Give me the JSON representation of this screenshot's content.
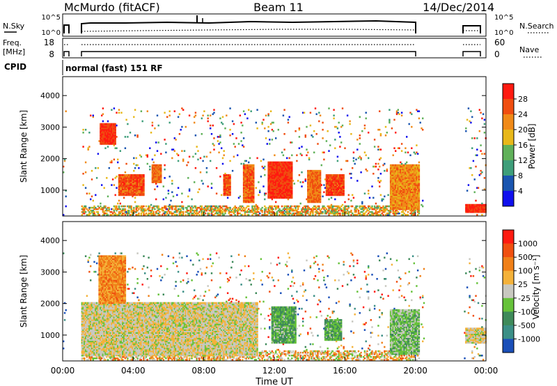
{
  "header": {
    "station": "McMurdo (fitACF)",
    "beam": "Beam 11",
    "date": "14/Dec/2014"
  },
  "top_panels": {
    "nsky_label": "N.Sky",
    "nsky_ticks": [
      "10^5",
      "10^0"
    ],
    "nsearch_label": "N.Search",
    "nsearch_ticks": [
      "10^5",
      "10^0"
    ],
    "freq_label_line1": "Freq.",
    "freq_label_line2": "[MHz]",
    "freq_ticks": [
      "18",
      "8"
    ],
    "nave_label": "Nave",
    "nave_ticks": [
      "60",
      "0"
    ],
    "cpid_label": "CPID",
    "cpid_value": "normal (fast) 151 RF"
  },
  "power_panel": {
    "ylabel": "Slant Range [km]",
    "yticks": [
      "4000",
      "3000",
      "2000",
      "1000"
    ],
    "colorbar_label": "Power [dB]",
    "colorbar_ticks": [
      "28",
      "24",
      "20",
      "16",
      "12",
      "8",
      "4"
    ],
    "colors": [
      "#1010ee",
      "#1a55b0",
      "#3e9e7a",
      "#60b15a",
      "#e8b81a",
      "#f08a18",
      "#f04e10",
      "#ff1a10"
    ]
  },
  "velocity_panel": {
    "ylabel": "Slant Range [km]",
    "yticks": [
      "4000",
      "3000",
      "2000",
      "1000"
    ],
    "colorbar_label": "Velocity [m s⁻¹]",
    "colorbar_ticks": [
      "1000",
      "500",
      "100",
      "25",
      "-25",
      "-100",
      "-500",
      "-1000"
    ],
    "colors": [
      "#1a4fb8",
      "#3b8f86",
      "#3e8a5a",
      "#66c23a",
      "#c8c8c0",
      "#f4b23a",
      "#f08018",
      "#f05010",
      "#ff1a10"
    ]
  },
  "x_axis": {
    "ticks": [
      "00:00",
      "04:00",
      "08:00",
      "12:00",
      "16:00",
      "20:00",
      "00:00"
    ],
    "label": "Time UT"
  },
  "chart_data": [
    {
      "type": "heatmap",
      "title": "Power",
      "xlabel": "Time UT",
      "ylabel": "Slant Range [km]",
      "xlim": [
        0,
        24
      ],
      "ylim": [
        180,
        4600
      ],
      "colorbar_label": "Power [dB]",
      "colorbar_range": [
        0,
        32
      ],
      "data_gaps_hours": [
        [
          0.2,
          1.0
        ],
        [
          20.5,
          22.7
        ]
      ],
      "regions": [
        {
          "t0": 2.1,
          "t1": 3.0,
          "r0": 2450,
          "r1": 3100,
          "value": 28
        },
        {
          "t0": 3.1,
          "t1": 4.6,
          "r0": 800,
          "r1": 1500,
          "value": 26
        },
        {
          "t0": 5.0,
          "t1": 5.6,
          "r0": 1200,
          "r1": 1800,
          "value": 24
        },
        {
          "t0": 9.1,
          "t1": 9.5,
          "r0": 800,
          "r1": 1500,
          "value": 26
        },
        {
          "t0": 10.2,
          "t1": 10.8,
          "r0": 600,
          "r1": 1800,
          "value": 25
        },
        {
          "t0": 11.6,
          "t1": 13.0,
          "r0": 700,
          "r1": 1900,
          "value": 28
        },
        {
          "t0": 13.8,
          "t1": 14.6,
          "r0": 600,
          "r1": 1600,
          "value": 24
        },
        {
          "t0": 14.9,
          "t1": 15.9,
          "r0": 800,
          "r1": 1500,
          "value": 27
        },
        {
          "t0": 18.5,
          "t1": 20.2,
          "r0": 350,
          "r1": 1800,
          "value": 22
        },
        {
          "t0": 22.8,
          "t1": 24.0,
          "r0": 250,
          "r1": 550,
          "value": 28
        }
      ]
    },
    {
      "type": "heatmap",
      "title": "Velocity",
      "xlabel": "Time UT",
      "ylabel": "Slant Range [km]",
      "xlim": [
        0,
        24
      ],
      "ylim": [
        180,
        4600
      ],
      "colorbar_label": "Velocity [m s⁻¹]",
      "colorbar_range": [
        -1000,
        1000
      ],
      "data_gaps_hours": [
        [
          0.2,
          1.0
        ],
        [
          20.5,
          22.7
        ]
      ],
      "regions": [
        {
          "t0": 1.0,
          "t1": 11.0,
          "r0": 300,
          "r1": 2000,
          "value": 50
        },
        {
          "t0": 2.0,
          "t1": 3.5,
          "r0": 2000,
          "r1": 3500,
          "value": 400
        },
        {
          "t0": 11.8,
          "t1": 13.2,
          "r0": 700,
          "r1": 1900,
          "value": -300
        },
        {
          "t0": 14.8,
          "t1": 15.8,
          "r0": 800,
          "r1": 1500,
          "value": -300
        },
        {
          "t0": 18.5,
          "t1": 20.2,
          "r0": 350,
          "r1": 1800,
          "value": -200
        },
        {
          "t0": 22.8,
          "t1": 24.0,
          "r0": 700,
          "r1": 1200,
          "value": 60
        }
      ]
    }
  ]
}
